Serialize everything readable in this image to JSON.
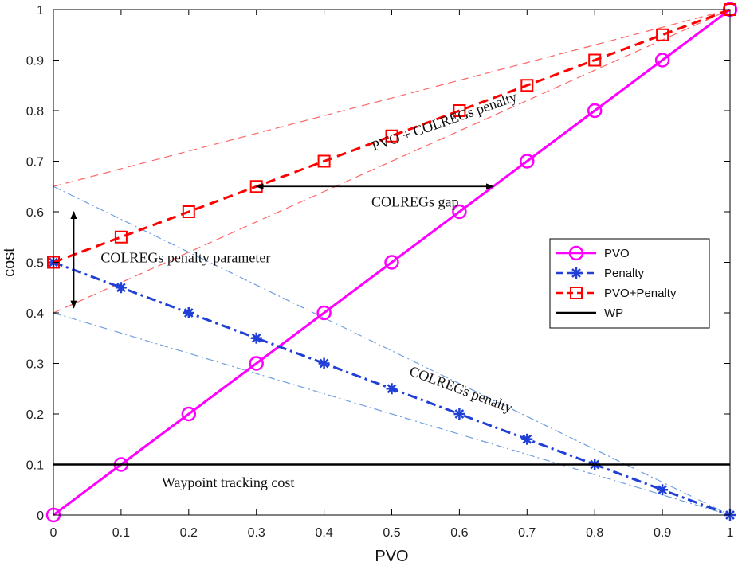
{
  "chart_data": {
    "type": "line",
    "title": "",
    "xlabel": "PVO",
    "ylabel": "cost",
    "xlim": [
      0,
      1
    ],
    "ylim": [
      0,
      1
    ],
    "xticks": [
      0,
      0.1,
      0.2,
      0.3,
      0.4,
      0.5,
      0.6,
      0.7,
      0.8,
      0.9,
      1
    ],
    "yticks": [
      0,
      0.1,
      0.2,
      0.3,
      0.4,
      0.5,
      0.6,
      0.7,
      0.8,
      0.9,
      1
    ],
    "xtick_labels": [
      "0",
      "0.1",
      "0.2",
      "0.3",
      "0.4",
      "0.5",
      "0.6",
      "0.7",
      "0.8",
      "0.9",
      "1"
    ],
    "ytick_labels": [
      "0",
      "0.1",
      "0.2",
      "0.3",
      "0.4",
      "0.5",
      "0.6",
      "0.7",
      "0.8",
      "0.9",
      "1"
    ],
    "grid": false,
    "legend_position": "center-right",
    "x": [
      0,
      0.1,
      0.2,
      0.3,
      0.4,
      0.5,
      0.6,
      0.7,
      0.8,
      0.9,
      1
    ],
    "series": [
      {
        "name": "PVO",
        "color": "#ff00ff",
        "line": "solid",
        "marker": "circle",
        "values": [
          0,
          0.1,
          0.2,
          0.3,
          0.4,
          0.5,
          0.6,
          0.7,
          0.8,
          0.9,
          1
        ]
      },
      {
        "name": "Penalty",
        "color": "#1f3fd6",
        "line": "dashdot",
        "marker": "asterisk",
        "values": [
          0.5,
          0.45,
          0.4,
          0.35,
          0.3,
          0.25,
          0.2,
          0.15,
          0.1,
          0.05,
          0
        ]
      },
      {
        "name": "PVO+Penalty",
        "color": "#ff0000",
        "line": "dashed",
        "marker": "square",
        "values": [
          0.5,
          0.55,
          0.6,
          0.65,
          0.7,
          0.75,
          0.8,
          0.85,
          0.9,
          0.95,
          1
        ]
      },
      {
        "name": "WP",
        "color": "#000000",
        "line": "solid",
        "marker": "none",
        "values": [
          0.1,
          0.1,
          0.1,
          0.1,
          0.1,
          0.1,
          0.1,
          0.1,
          0.1,
          0.1,
          0.1
        ]
      }
    ],
    "guide_lines": [
      {
        "color": "#ff6666",
        "style": "dashed",
        "x1": 0,
        "y1": 0.65,
        "x2": 1,
        "y2": 1
      },
      {
        "color": "#ff6666",
        "style": "dashed",
        "x1": 0,
        "y1": 0.4,
        "x2": 1,
        "y2": 1
      },
      {
        "color": "#6f9fe0",
        "style": "dashdot",
        "x1": 0,
        "y1": 0.65,
        "x2": 1,
        "y2": 0
      },
      {
        "color": "#6f9fe0",
        "style": "dashdot",
        "x1": 0,
        "y1": 0.4,
        "x2": 1,
        "y2": 0
      }
    ],
    "annotations": [
      {
        "text": "PVO + COLREGs penalty",
        "x": 0.58,
        "y": 0.77,
        "rotation_deg": -19.4
      },
      {
        "text": "COLREGs gap",
        "x": 0.47,
        "y": 0.61,
        "rotation_deg": 0
      },
      {
        "text": "COLREGs penalty parameter",
        "x": 0.07,
        "y": 0.5,
        "rotation_deg": 0
      },
      {
        "text": "COLREGs penalty",
        "x": 0.6,
        "y": 0.24,
        "rotation_deg": 20.5
      },
      {
        "text": "Waypoint tracking cost",
        "x": 0.16,
        "y": 0.055,
        "rotation_deg": 0
      }
    ],
    "arrows": [
      {
        "name": "colregs-gap-arrow",
        "x1": 0.3,
        "y1": 0.65,
        "x2": 0.65,
        "y2": 0.65,
        "heads": "both"
      },
      {
        "name": "penalty-parameter-arrow",
        "x1": 0.03,
        "y1": 0.6,
        "x2": 0.03,
        "y2": 0.41,
        "heads": "both"
      }
    ]
  }
}
